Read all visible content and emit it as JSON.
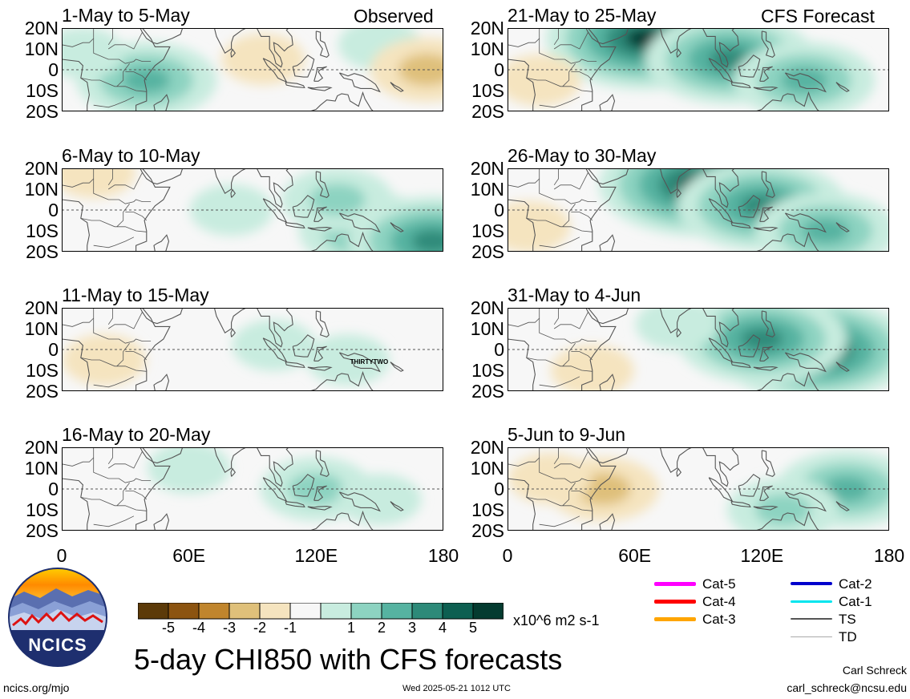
{
  "header": {
    "observed_label": "Observed",
    "forecast_label": "CFS Forecast"
  },
  "colors": {
    "levels": [
      "#5c3a09",
      "#8c5410",
      "#c0852d",
      "#dfc07a",
      "#f5e4bf",
      "#f7f7f7",
      "#c8ecdf",
      "#8dd3c1",
      "#56b3a1",
      "#2d8a79",
      "#0d5f51",
      "#043b30"
    ],
    "land_outline": "#555555",
    "equator": "#555555"
  },
  "chart_data": [
    {
      "type": "heatmap",
      "title": "1-May to 5-May",
      "column": "left",
      "row": 0,
      "x_ticks": [
        "0",
        "60E",
        "120E",
        "180"
      ],
      "y_ticks": [
        "20N",
        "10N",
        "0",
        "10S",
        "20S"
      ],
      "xlim": [
        0,
        180
      ],
      "ylim": [
        -20,
        20
      ],
      "anomalies": [
        {
          "lon": 40,
          "lat": -5,
          "value": 3
        },
        {
          "lon": 150,
          "lat": 12,
          "value": 1
        },
        {
          "lon": 172,
          "lat": 0,
          "value": -2
        },
        {
          "lon": 95,
          "lat": 5,
          "value": -1
        },
        {
          "lon": 10,
          "lat": 8,
          "value": 1
        }
      ]
    },
    {
      "type": "heatmap",
      "title": "6-May to 10-May",
      "column": "left",
      "row": 1,
      "x_ticks": [
        "0",
        "60E",
        "120E",
        "180"
      ],
      "y_ticks": [
        "20N",
        "10N",
        "0",
        "10S",
        "20S"
      ],
      "xlim": [
        0,
        180
      ],
      "ylim": [
        -20,
        20
      ],
      "anomalies": [
        {
          "lon": 145,
          "lat": -10,
          "value": 3
        },
        {
          "lon": 175,
          "lat": -15,
          "value": 4
        },
        {
          "lon": 130,
          "lat": 5,
          "value": 2
        },
        {
          "lon": 15,
          "lat": 18,
          "value": -1
        },
        {
          "lon": 80,
          "lat": 0,
          "value": 1
        }
      ]
    },
    {
      "type": "heatmap",
      "title": "11-May to 15-May",
      "column": "left",
      "row": 2,
      "x_ticks": [
        "0",
        "60E",
        "120E",
        "180"
      ],
      "y_ticks": [
        "20N",
        "10N",
        "0",
        "10S",
        "20S"
      ],
      "xlim": [
        0,
        180
      ],
      "ylim": [
        -20,
        20
      ],
      "anomalies": [
        {
          "lon": 20,
          "lat": -5,
          "value": -1
        },
        {
          "lon": 100,
          "lat": 2,
          "value": 1
        },
        {
          "lon": 135,
          "lat": -5,
          "value": 1
        }
      ],
      "annotation": "THIRTYTWO"
    },
    {
      "type": "heatmap",
      "title": "16-May to 20-May",
      "column": "left",
      "row": 3,
      "x_ticks": [
        "0",
        "60E",
        "120E",
        "180"
      ],
      "y_ticks": [
        "20N",
        "10N",
        "0",
        "10S",
        "20S"
      ],
      "xlim": [
        0,
        180
      ],
      "ylim": [
        -20,
        20
      ],
      "anomalies": [
        {
          "lon": 120,
          "lat": 0,
          "value": 2
        },
        {
          "lon": 60,
          "lat": 10,
          "value": 1
        },
        {
          "lon": 150,
          "lat": -5,
          "value": 1
        }
      ]
    },
    {
      "type": "heatmap",
      "title": "21-May to 25-May",
      "column": "right",
      "row": 0,
      "x_ticks": [
        "0",
        "60E",
        "120E",
        "180"
      ],
      "y_ticks": [
        "20N",
        "10N",
        "0",
        "10S",
        "20S"
      ],
      "xlim": [
        0,
        180
      ],
      "ylim": [
        -20,
        20
      ],
      "anomalies": [
        {
          "lon": 65,
          "lat": 15,
          "value": 5
        },
        {
          "lon": 105,
          "lat": 5,
          "value": 4
        },
        {
          "lon": 140,
          "lat": -5,
          "value": 3
        },
        {
          "lon": 15,
          "lat": -5,
          "value": -1
        }
      ]
    },
    {
      "type": "heatmap",
      "title": "26-May to 30-May",
      "column": "right",
      "row": 1,
      "x_ticks": [
        "0",
        "60E",
        "120E",
        "180"
      ],
      "y_ticks": [
        "20N",
        "10N",
        "0",
        "10S",
        "20S"
      ],
      "xlim": [
        0,
        180
      ],
      "ylim": [
        -20,
        20
      ],
      "anomalies": [
        {
          "lon": 90,
          "lat": 12,
          "value": 5
        },
        {
          "lon": 120,
          "lat": 2,
          "value": 4
        },
        {
          "lon": 150,
          "lat": -10,
          "value": 3
        },
        {
          "lon": 10,
          "lat": -8,
          "value": -1
        }
      ]
    },
    {
      "type": "heatmap",
      "title": "31-May to 4-Jun",
      "column": "right",
      "row": 2,
      "x_ticks": [
        "0",
        "60E",
        "120E",
        "180"
      ],
      "y_ticks": [
        "20N",
        "10N",
        "0",
        "10S",
        "20S"
      ],
      "xlim": [
        0,
        180
      ],
      "ylim": [
        -20,
        20
      ],
      "anomalies": [
        {
          "lon": 145,
          "lat": 0,
          "value": 5
        },
        {
          "lon": 120,
          "lat": 5,
          "value": 4
        },
        {
          "lon": 40,
          "lat": -10,
          "value": -1
        },
        {
          "lon": 80,
          "lat": 12,
          "value": 1
        }
      ]
    },
    {
      "type": "heatmap",
      "title": "5-Jun to 9-Jun",
      "column": "right",
      "row": 3,
      "x_ticks": [
        "0",
        "60E",
        "120E",
        "180"
      ],
      "y_ticks": [
        "20N",
        "10N",
        "0",
        "10S",
        "20S"
      ],
      "xlim": [
        0,
        180
      ],
      "ylim": [
        -20,
        20
      ],
      "anomalies": [
        {
          "lon": 45,
          "lat": 0,
          "value": -2
        },
        {
          "lon": 20,
          "lat": 5,
          "value": -1
        },
        {
          "lon": 160,
          "lat": 0,
          "value": 3
        },
        {
          "lon": 130,
          "lat": -10,
          "value": 2
        }
      ]
    }
  ],
  "colorbar": {
    "ticks": [
      "-5",
      "-4",
      "-3",
      "-2",
      "-1",
      "1",
      "2",
      "3",
      "4",
      "5"
    ],
    "units": "x10^6 m2 s-1"
  },
  "legend": {
    "items": [
      {
        "label": "Cat-5",
        "color": "#ff00ff",
        "width": 5
      },
      {
        "label": "Cat-4",
        "color": "#ff0000",
        "width": 5
      },
      {
        "label": "Cat-3",
        "color": "#ffa500",
        "width": 5
      },
      {
        "label": "Cat-2",
        "color": "#0000cc",
        "width": 4
      },
      {
        "label": "Cat-1",
        "color": "#00e5ee",
        "width": 3
      },
      {
        "label": "TS",
        "color": "#555555",
        "width": 2
      },
      {
        "label": "TD",
        "color": "#aaaaaa",
        "width": 1
      }
    ]
  },
  "logo": {
    "text": "NCICS"
  },
  "footer": {
    "title": "5-day CHI850 with CFS forecasts",
    "url": "ncics.org/mjo",
    "timestamp": "Wed 2025-05-21 1012 UTC",
    "author": "Carl Schreck",
    "email": "carl_schreck@ncsu.edu"
  }
}
